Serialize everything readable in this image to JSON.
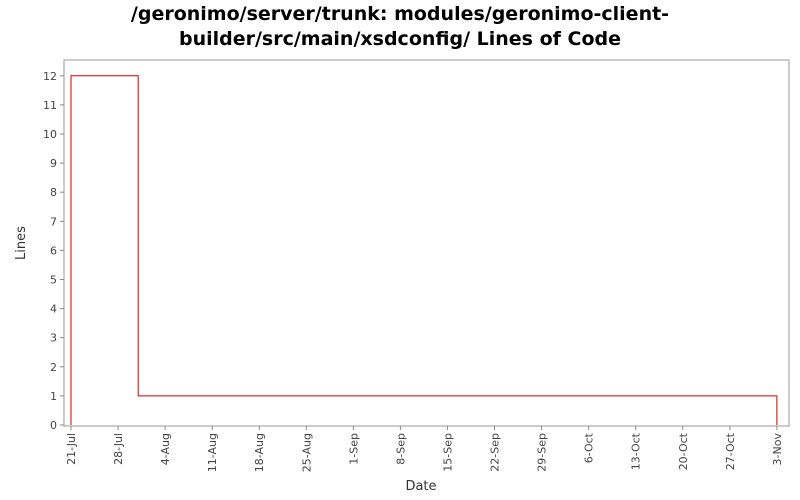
{
  "chart_data": {
    "type": "line",
    "step": true,
    "title_lines": [
      "/geronimo/server/trunk: modules/geronimo-client-",
      "builder/src/main/xsdconfig/ Lines of Code"
    ],
    "xlabel": "Date",
    "ylabel": "Lines",
    "ylim": [
      0,
      12.5
    ],
    "grid": false,
    "yticks": [
      0,
      1,
      2,
      3,
      4,
      5,
      6,
      7,
      8,
      9,
      10,
      11,
      12
    ],
    "xticks": [
      "21-Jul",
      "28-Jul",
      "4-Aug",
      "11-Aug",
      "18-Aug",
      "25-Aug",
      "1-Sep",
      "8-Sep",
      "15-Sep",
      "22-Sep",
      "29-Sep",
      "6-Oct",
      "13-Oct",
      "20-Oct",
      "27-Oct",
      "3-Nov"
    ],
    "series": [
      {
        "color": "#cc0000",
        "points": [
          {
            "date": "21-Jul",
            "value": 0
          },
          {
            "date": "21-Jul",
            "value": 12
          },
          {
            "date": "31-Jul",
            "value": 12
          },
          {
            "date": "31-Jul",
            "value": 1
          },
          {
            "date": "3-Nov",
            "value": 1
          },
          {
            "date": "3-Nov",
            "value": 0
          }
        ]
      }
    ]
  }
}
